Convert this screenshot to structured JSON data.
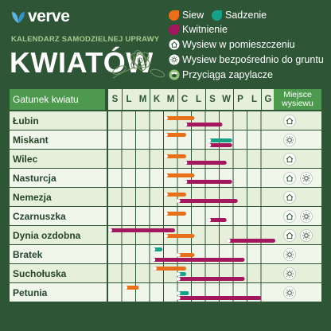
{
  "brand": {
    "name": "verve"
  },
  "header": {
    "subtitle": "KALENDARZ SAMODZIELNEJ UPRAWY",
    "title": "KWIATÓW"
  },
  "legend": {
    "sow": "Siew",
    "plant": "Sadzenie",
    "bloom": "Kwitnienie",
    "indoor": "Wysiew w pomieszczeniu",
    "outdoor": "Wysiew bezpośrednio do gruntu",
    "pollinator": "Przyciąga zapylacze"
  },
  "colors": {
    "background": "#2e5535",
    "sow": "#e8701a",
    "plant": "#18a088",
    "bloom": "#a3175f",
    "row_light": "#e6efd9",
    "row_lighter": "#f1f6ea",
    "header_green": "#4d9a4e"
  },
  "table": {
    "col_species": "Gatunek kwiatu",
    "col_place": "Miejsce wysiewu",
    "months": [
      "S",
      "L",
      "M",
      "K",
      "M",
      "C",
      "L",
      "S",
      "W",
      "P",
      "L",
      "G"
    ],
    "rows": [
      {
        "name": "Łubin",
        "bars": [
          {
            "type": "sow",
            "start": 4,
            "end": 6.2
          },
          {
            "type": "bloom",
            "start": 5.4,
            "end": 8.2
          }
        ],
        "places": [
          "indoor-icon"
        ]
      },
      {
        "name": "Miskant",
        "bars": [
          {
            "type": "sow",
            "start": 4,
            "end": 5.6
          },
          {
            "type": "plant",
            "start": 7.1,
            "end": 8.9
          },
          {
            "type": "bloom",
            "start": 7.1,
            "end": 8.9
          }
        ],
        "places": [
          "outdoor-icon"
        ]
      },
      {
        "name": "Wilec",
        "bars": [
          {
            "type": "sow",
            "start": 4,
            "end": 5.6
          },
          {
            "type": "bloom",
            "start": 5.4,
            "end": 8.5
          }
        ],
        "places": [
          "indoor-icon"
        ]
      },
      {
        "name": "Nasturcja",
        "bars": [
          {
            "type": "sow",
            "start": 4,
            "end": 6.2
          },
          {
            "type": "bloom",
            "start": 5.4,
            "end": 8.9
          }
        ],
        "places": [
          "indoor-icon",
          "outdoor-icon"
        ]
      },
      {
        "name": "Nemezja",
        "bars": [
          {
            "type": "sow",
            "start": 4,
            "end": 5.6
          },
          {
            "type": "bloom",
            "start": 4.9,
            "end": 9.3
          }
        ],
        "places": [
          "indoor-icon"
        ]
      },
      {
        "name": "Czarnuszka",
        "bars": [
          {
            "type": "sow",
            "start": 4,
            "end": 5.6
          },
          {
            "type": "bloom",
            "start": 7.1,
            "end": 8.5
          }
        ],
        "places": [
          "indoor-icon",
          "outdoor-icon"
        ]
      },
      {
        "name": "Dynia ozdobna",
        "bars": [
          {
            "type": "bloom",
            "start": 0,
            "end": 4.8
          },
          {
            "type": "sow",
            "start": 4,
            "end": 6.2
          },
          {
            "type": "bloom",
            "start": 8.5,
            "end": 12
          }
        ],
        "places": [
          "indoor-icon",
          "outdoor-icon"
        ]
      },
      {
        "name": "Bratek",
        "bars": [
          {
            "type": "plant",
            "start": 3.1,
            "end": 3.9
          },
          {
            "type": "sow",
            "start": 4.9,
            "end": 6.2
          },
          {
            "type": "bloom",
            "start": 3.1,
            "end": 9.8
          }
        ],
        "places": [
          "outdoor-icon"
        ]
      },
      {
        "name": "Suchołuska",
        "bars": [
          {
            "type": "sow",
            "start": 3.2,
            "end": 5.6
          },
          {
            "type": "plant",
            "start": 4.9,
            "end": 5.6
          },
          {
            "type": "bloom",
            "start": 4.9,
            "end": 9.8
          }
        ],
        "places": [
          "outdoor-icon"
        ]
      },
      {
        "name": "Petunia",
        "bars": [
          {
            "type": "sow",
            "start": 1.1,
            "end": 2.2
          },
          {
            "type": "plant",
            "start": 4.9,
            "end": 5.8
          },
          {
            "type": "bloom",
            "start": 4.9,
            "end": 11
          }
        ],
        "places": [
          "outdoor-icon"
        ]
      }
    ]
  }
}
